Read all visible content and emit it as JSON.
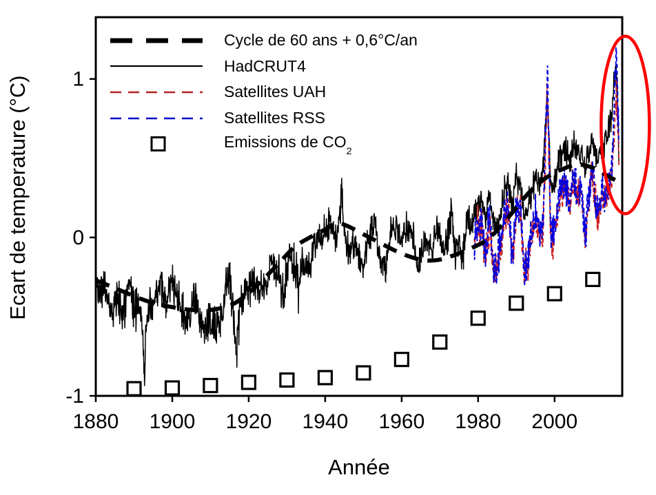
{
  "chart_data": {
    "type": "line",
    "title": "",
    "xlabel": "Année",
    "ylabel": "Ecart de temperature (°C)",
    "xlim": [
      1880,
      2017.7
    ],
    "ylim": [
      -1,
      1.39
    ],
    "xticks": [
      1880,
      1900,
      1920,
      1940,
      1960,
      1980,
      2000
    ],
    "yticks": [
      -1,
      0,
      1
    ],
    "grid": false,
    "background": "#ffffff",
    "axis_color": "#000000",
    "legend_position": "upper-left",
    "series": [
      {
        "name": "Cycle de 60 ans + 0,6°C/an",
        "type": "line",
        "style": "thick-dashed",
        "color": "#000000",
        "points": [
          [
            1880,
            -0.27
          ],
          [
            1884,
            -0.31
          ],
          [
            1888,
            -0.35
          ],
          [
            1892,
            -0.39
          ],
          [
            1896,
            -0.42
          ],
          [
            1900,
            -0.44
          ],
          [
            1904,
            -0.455
          ],
          [
            1908,
            -0.46
          ],
          [
            1912,
            -0.45
          ],
          [
            1916,
            -0.42
          ],
          [
            1920,
            -0.35
          ],
          [
            1924,
            -0.26
          ],
          [
            1928,
            -0.16
          ],
          [
            1932,
            -0.06
          ],
          [
            1936,
            0.0
          ],
          [
            1940,
            0.05
          ],
          [
            1943,
            0.09
          ],
          [
            1946,
            0.07
          ],
          [
            1950,
            0.02
          ],
          [
            1954,
            -0.03
          ],
          [
            1958,
            -0.08
          ],
          [
            1962,
            -0.12
          ],
          [
            1966,
            -0.145
          ],
          [
            1970,
            -0.14
          ],
          [
            1974,
            -0.11
          ],
          [
            1978,
            -0.07
          ],
          [
            1982,
            -0.02
          ],
          [
            1986,
            0.07
          ],
          [
            1990,
            0.19
          ],
          [
            1994,
            0.3
          ],
          [
            1998,
            0.38
          ],
          [
            2002,
            0.43
          ],
          [
            2006,
            0.46
          ],
          [
            2010,
            0.44
          ],
          [
            2013,
            0.4
          ],
          [
            2016,
            0.36
          ],
          [
            2017.5,
            0.34
          ]
        ]
      },
      {
        "name": "HadCRUT4",
        "type": "line",
        "style": "solid",
        "color": "#000000",
        "resolution": "monthly (rendered from annual anomaly samples)",
        "annual_points": [
          [
            1880,
            -0.28
          ],
          [
            1881,
            -0.3
          ],
          [
            1882,
            -0.33
          ],
          [
            1883,
            -0.38
          ],
          [
            1884,
            -0.45
          ],
          [
            1885,
            -0.43
          ],
          [
            1886,
            -0.4
          ],
          [
            1887,
            -0.47
          ],
          [
            1888,
            -0.4
          ],
          [
            1889,
            -0.31
          ],
          [
            1890,
            -0.45
          ],
          [
            1891,
            -0.42
          ],
          [
            1892,
            -0.5
          ],
          [
            1892.9,
            -0.92
          ],
          [
            1893,
            -0.55
          ],
          [
            1894,
            -0.5
          ],
          [
            1895,
            -0.45
          ],
          [
            1896,
            -0.33
          ],
          [
            1897,
            -0.3
          ],
          [
            1898,
            -0.42
          ],
          [
            1899,
            -0.35
          ],
          [
            1900,
            -0.28
          ],
          [
            1901,
            -0.33
          ],
          [
            1902,
            -0.44
          ],
          [
            1903,
            -0.5
          ],
          [
            1904,
            -0.56
          ],
          [
            1905,
            -0.45
          ],
          [
            1906,
            -0.37
          ],
          [
            1907,
            -0.53
          ],
          [
            1908,
            -0.55
          ],
          [
            1909,
            -0.57
          ],
          [
            1910,
            -0.55
          ],
          [
            1911,
            -0.57
          ],
          [
            1912,
            -0.52
          ],
          [
            1913,
            -0.5
          ],
          [
            1914,
            -0.32
          ],
          [
            1915,
            -0.25
          ],
          [
            1916,
            -0.43
          ],
          [
            1916.9,
            -0.82
          ],
          [
            1917,
            -0.6
          ],
          [
            1918,
            -0.43
          ],
          [
            1919,
            -0.33
          ],
          [
            1920,
            -0.3
          ],
          [
            1921,
            -0.26
          ],
          [
            1922,
            -0.34
          ],
          [
            1923,
            -0.3
          ],
          [
            1924,
            -0.34
          ],
          [
            1925,
            -0.25
          ],
          [
            1926,
            -0.14
          ],
          [
            1927,
            -0.23
          ],
          [
            1928,
            -0.23
          ],
          [
            1929,
            -0.39
          ],
          [
            1930,
            -0.17
          ],
          [
            1931,
            -0.12
          ],
          [
            1932,
            -0.17
          ],
          [
            1933,
            -0.31
          ],
          [
            1934,
            -0.16
          ],
          [
            1935,
            -0.21
          ],
          [
            1936,
            -0.16
          ],
          [
            1937,
            -0.04
          ],
          [
            1938,
            -0.02
          ],
          [
            1939,
            -0.05
          ],
          [
            1940,
            0.04
          ],
          [
            1941,
            0.1
          ],
          [
            1942,
            0.02
          ],
          [
            1943,
            0.04
          ],
          [
            1944,
            0.15
          ],
          [
            1944.2,
            0.32
          ],
          [
            1945,
            0.06
          ],
          [
            1946,
            -0.1
          ],
          [
            1947,
            -0.06
          ],
          [
            1948,
            -0.06
          ],
          [
            1949,
            -0.11
          ],
          [
            1950,
            -0.19
          ],
          [
            1951,
            -0.03
          ],
          [
            1952,
            0.04
          ],
          [
            1953,
            0.1
          ],
          [
            1954,
            -0.12
          ],
          [
            1955,
            -0.15
          ],
          [
            1956,
            -0.21
          ],
          [
            1957,
            0.02
          ],
          [
            1958,
            0.07
          ],
          [
            1959,
            0.02
          ],
          [
            1960,
            -0.03
          ],
          [
            1961,
            0.05
          ],
          [
            1962,
            0.02
          ],
          [
            1963,
            0.05
          ],
          [
            1964,
            -0.21
          ],
          [
            1965,
            -0.12
          ],
          [
            1966,
            -0.05
          ],
          [
            1967,
            -0.03
          ],
          [
            1968,
            -0.08
          ],
          [
            1969,
            0.05
          ],
          [
            1970,
            0.02
          ],
          [
            1971,
            -0.1
          ],
          [
            1972,
            0.0
          ],
          [
            1973,
            0.16
          ],
          [
            1974,
            -0.09
          ],
          [
            1975,
            -0.02
          ],
          [
            1976,
            -0.13
          ],
          [
            1977,
            0.12
          ],
          [
            1978,
            0.04
          ],
          [
            1979,
            0.14
          ],
          [
            1980,
            0.19
          ],
          [
            1981,
            0.25
          ],
          [
            1982,
            0.09
          ],
          [
            1983,
            0.28
          ],
          [
            1984,
            0.1
          ],
          [
            1985,
            0.09
          ],
          [
            1986,
            0.16
          ],
          [
            1987,
            0.31
          ],
          [
            1988,
            0.33
          ],
          [
            1989,
            0.21
          ],
          [
            1990,
            0.37
          ],
          [
            1991,
            0.33
          ],
          [
            1992,
            0.14
          ],
          [
            1993,
            0.19
          ],
          [
            1994,
            0.26
          ],
          [
            1995,
            0.41
          ],
          [
            1996,
            0.31
          ],
          [
            1997,
            0.43
          ],
          [
            1998.1,
            0.88
          ],
          [
            1999,
            0.34
          ],
          [
            2000,
            0.33
          ],
          [
            2001,
            0.49
          ],
          [
            2002,
            0.53
          ],
          [
            2003,
            0.53
          ],
          [
            2004,
            0.49
          ],
          [
            2005,
            0.59
          ],
          [
            2006,
            0.53
          ],
          [
            2007,
            0.56
          ],
          [
            2008,
            0.43
          ],
          [
            2009,
            0.56
          ],
          [
            2010,
            0.61
          ],
          [
            2011,
            0.49
          ],
          [
            2012,
            0.53
          ],
          [
            2013,
            0.57
          ],
          [
            2014,
            0.63
          ],
          [
            2015,
            0.8
          ],
          [
            2016.15,
            1.1
          ],
          [
            2016.9,
            0.5
          ]
        ]
      },
      {
        "name": "Satellites UAH",
        "type": "line",
        "style": "dashed",
        "color": "#cc2222",
        "resolution": "monthly (rendered from annual anomaly samples)",
        "annual_points": [
          [
            1979,
            -0.02
          ],
          [
            1980,
            0.1
          ],
          [
            1981,
            0.03
          ],
          [
            1982,
            -0.14
          ],
          [
            1983,
            0.1
          ],
          [
            1984,
            -0.24
          ],
          [
            1985,
            -0.22
          ],
          [
            1986,
            -0.06
          ],
          [
            1987,
            0.16
          ],
          [
            1988,
            0.13
          ],
          [
            1989,
            -0.14
          ],
          [
            1990,
            0.14
          ],
          [
            1991,
            0.19
          ],
          [
            1992,
            -0.2
          ],
          [
            1993,
            -0.17
          ],
          [
            1994,
            -0.02
          ],
          [
            1995,
            0.13
          ],
          [
            1996,
            0.0
          ],
          [
            1997,
            0.03
          ],
          [
            1998.15,
            0.97
          ],
          [
            1999,
            0.0
          ],
          [
            2000,
            0.0
          ],
          [
            2001,
            0.2
          ],
          [
            2002,
            0.31
          ],
          [
            2003,
            0.28
          ],
          [
            2004,
            0.2
          ],
          [
            2005,
            0.33
          ],
          [
            2006,
            0.26
          ],
          [
            2007,
            0.28
          ],
          [
            2008,
            0.0
          ],
          [
            2009,
            0.23
          ],
          [
            2010,
            0.43
          ],
          [
            2011,
            0.13
          ],
          [
            2012,
            0.23
          ],
          [
            2013,
            0.26
          ],
          [
            2014,
            0.28
          ],
          [
            2015,
            0.38
          ],
          [
            2016.15,
            0.93
          ],
          [
            2016.9,
            0.45
          ]
        ]
      },
      {
        "name": "Satellites RSS",
        "type": "line",
        "style": "dashed",
        "color": "#0000dd",
        "resolution": "monthly (rendered from annual anomaly samples)",
        "annual_points": [
          [
            1979,
            0.01
          ],
          [
            1980,
            0.13
          ],
          [
            1981,
            0.06
          ],
          [
            1982,
            -0.11
          ],
          [
            1983,
            0.13
          ],
          [
            1984,
            -0.21
          ],
          [
            1985,
            -0.19
          ],
          [
            1986,
            -0.03
          ],
          [
            1987,
            0.19
          ],
          [
            1988,
            0.16
          ],
          [
            1989,
            -0.11
          ],
          [
            1990,
            0.17
          ],
          [
            1991,
            0.22
          ],
          [
            1992,
            -0.17
          ],
          [
            1993,
            -0.14
          ],
          [
            1994,
            0.01
          ],
          [
            1995,
            0.16
          ],
          [
            1996,
            0.03
          ],
          [
            1997,
            0.07
          ],
          [
            1998.15,
            1.05
          ],
          [
            1999,
            0.03
          ],
          [
            2000,
            0.03
          ],
          [
            2001,
            0.23
          ],
          [
            2002,
            0.34
          ],
          [
            2003,
            0.31
          ],
          [
            2004,
            0.23
          ],
          [
            2005,
            0.36
          ],
          [
            2006,
            0.29
          ],
          [
            2007,
            0.31
          ],
          [
            2008,
            0.03
          ],
          [
            2009,
            0.26
          ],
          [
            2010,
            0.46
          ],
          [
            2011,
            0.16
          ],
          [
            2012,
            0.26
          ],
          [
            2013,
            0.29
          ],
          [
            2014,
            0.31
          ],
          [
            2015,
            0.43
          ],
          [
            2016.15,
            1.19
          ],
          [
            2016.9,
            0.52
          ]
        ]
      },
      {
        "name": "Emissions de CO2",
        "type": "scatter",
        "marker": "open-square",
        "color": "#000000",
        "points": [
          [
            1890,
            -0.955
          ],
          [
            1900,
            -0.95
          ],
          [
            1910,
            -0.935
          ],
          [
            1920,
            -0.915
          ],
          [
            1930,
            -0.9
          ],
          [
            1940,
            -0.885
          ],
          [
            1950,
            -0.855
          ],
          [
            1960,
            -0.77
          ],
          [
            1970,
            -0.66
          ],
          [
            1980,
            -0.51
          ],
          [
            1990,
            -0.415
          ],
          [
            2000,
            -0.355
          ],
          [
            2010,
            -0.265
          ]
        ]
      }
    ],
    "annotation": {
      "shape": "ellipse",
      "color": "#ff0000",
      "x_year": 2018.5,
      "y_temp": 0.71,
      "rx_years": 6.3,
      "ry_temp": 0.56,
      "stroke_width": 4.5
    }
  },
  "legend": {
    "items": [
      {
        "label": "Cycle de 60 ans + 0,6°C/an",
        "swatch": "thick-dash",
        "color": "#000000"
      },
      {
        "label": "HadCRUT4",
        "swatch": "solid-line",
        "color": "#000000"
      },
      {
        "label": "Satellites UAH",
        "swatch": "dash-line",
        "color": "#b22222"
      },
      {
        "label": "Satellites RSS",
        "swatch": "dash-line",
        "color": "#0000cc"
      },
      {
        "label": "Emissions de CO",
        "label_sub": "2",
        "swatch": "open-square",
        "color": "#000000"
      }
    ]
  }
}
